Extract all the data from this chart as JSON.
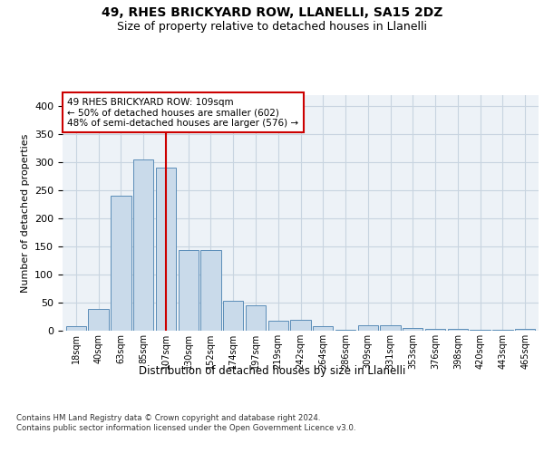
{
  "title1": "49, RHES BRICKYARD ROW, LLANELLI, SA15 2DZ",
  "title2": "Size of property relative to detached houses in Llanelli",
  "xlabel": "Distribution of detached houses by size in Llanelli",
  "ylabel": "Number of detached properties",
  "bar_labels": [
    "18sqm",
    "40sqm",
    "63sqm",
    "85sqm",
    "107sqm",
    "130sqm",
    "152sqm",
    "174sqm",
    "197sqm",
    "219sqm",
    "242sqm",
    "264sqm",
    "286sqm",
    "309sqm",
    "331sqm",
    "353sqm",
    "376sqm",
    "398sqm",
    "420sqm",
    "443sqm",
    "465sqm"
  ],
  "bar_values": [
    8,
    38,
    240,
    305,
    290,
    143,
    143,
    54,
    46,
    17,
    19,
    8,
    2,
    10,
    10,
    5,
    3,
    4,
    1,
    2,
    4
  ],
  "bar_color": "#c9daea",
  "bar_edge_color": "#5b8db8",
  "vline_x": 4,
  "vline_color": "#cc0000",
  "annotation_text": "49 RHES BRICKYARD ROW: 109sqm\n← 50% of detached houses are smaller (602)\n48% of semi-detached houses are larger (576) →",
  "annotation_box_color": "#ffffff",
  "annotation_box_edge": "#cc0000",
  "footnote": "Contains HM Land Registry data © Crown copyright and database right 2024.\nContains public sector information licensed under the Open Government Licence v3.0.",
  "ylim": [
    0,
    420
  ],
  "background_color": "#edf2f7",
  "plot_background": "#ffffff",
  "grid_color": "#c8d4e0"
}
